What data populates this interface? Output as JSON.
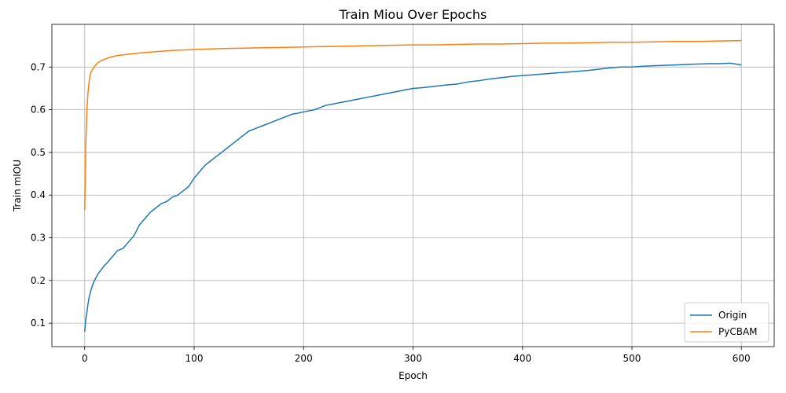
{
  "chart_data": {
    "type": "line",
    "title": "Train Miou Over Epochs",
    "xlabel": "Epoch",
    "ylabel": "Train mIOU",
    "xlim": [
      -30,
      630
    ],
    "ylim": [
      0.045,
      0.8
    ],
    "x_ticks": [
      0,
      100,
      200,
      300,
      400,
      500,
      600
    ],
    "y_ticks": [
      0.1,
      0.2,
      0.3,
      0.4,
      0.5,
      0.6,
      0.7
    ],
    "grid": true,
    "legend_position": "lower-right",
    "series": [
      {
        "name": "Origin",
        "color": "#1f77b4",
        "x": [
          0,
          1,
          2,
          3,
          4,
          5,
          6,
          8,
          10,
          12,
          15,
          18,
          20,
          25,
          30,
          35,
          40,
          45,
          50,
          55,
          60,
          65,
          70,
          75,
          80,
          85,
          90,
          95,
          100,
          105,
          110,
          115,
          120,
          125,
          130,
          135,
          140,
          145,
          150,
          155,
          160,
          165,
          170,
          175,
          180,
          185,
          190,
          195,
          200,
          210,
          220,
          230,
          240,
          250,
          260,
          270,
          280,
          290,
          300,
          310,
          320,
          330,
          340,
          350,
          360,
          370,
          380,
          390,
          400,
          410,
          420,
          430,
          440,
          450,
          460,
          470,
          480,
          490,
          500,
          510,
          520,
          530,
          540,
          550,
          560,
          570,
          580,
          590,
          600
        ],
        "values": [
          0.08,
          0.11,
          0.125,
          0.145,
          0.16,
          0.17,
          0.18,
          0.195,
          0.205,
          0.215,
          0.225,
          0.235,
          0.24,
          0.255,
          0.27,
          0.275,
          0.29,
          0.305,
          0.33,
          0.345,
          0.36,
          0.37,
          0.38,
          0.385,
          0.395,
          0.4,
          0.41,
          0.42,
          0.44,
          0.455,
          0.47,
          0.48,
          0.49,
          0.5,
          0.51,
          0.52,
          0.53,
          0.54,
          0.55,
          0.555,
          0.56,
          0.565,
          0.57,
          0.575,
          0.58,
          0.585,
          0.59,
          0.592,
          0.595,
          0.6,
          0.61,
          0.615,
          0.62,
          0.625,
          0.63,
          0.635,
          0.64,
          0.645,
          0.65,
          0.652,
          0.655,
          0.658,
          0.66,
          0.665,
          0.668,
          0.672,
          0.675,
          0.678,
          0.68,
          0.682,
          0.684,
          0.686,
          0.688,
          0.69,
          0.692,
          0.695,
          0.698,
          0.7,
          0.7,
          0.702,
          0.703,
          0.704,
          0.705,
          0.706,
          0.707,
          0.708,
          0.708,
          0.709,
          0.705
        ]
      },
      {
        "name": "PyCBAM",
        "color": "#ff7f0e",
        "x": [
          0,
          1,
          2,
          3,
          4,
          5,
          6,
          8,
          10,
          12,
          15,
          18,
          20,
          25,
          30,
          40,
          50,
          60,
          70,
          80,
          90,
          100,
          120,
          140,
          160,
          180,
          200,
          220,
          240,
          260,
          280,
          300,
          320,
          340,
          360,
          380,
          400,
          420,
          440,
          460,
          480,
          500,
          520,
          540,
          560,
          580,
          600
        ],
        "values": [
          0.365,
          0.52,
          0.6,
          0.64,
          0.665,
          0.68,
          0.69,
          0.698,
          0.705,
          0.71,
          0.715,
          0.718,
          0.72,
          0.724,
          0.727,
          0.73,
          0.733,
          0.735,
          0.737,
          0.739,
          0.74,
          0.741,
          0.743,
          0.744,
          0.745,
          0.746,
          0.747,
          0.748,
          0.749,
          0.75,
          0.751,
          0.752,
          0.752,
          0.753,
          0.754,
          0.754,
          0.755,
          0.756,
          0.756,
          0.757,
          0.758,
          0.758,
          0.759,
          0.76,
          0.76,
          0.761,
          0.762
        ]
      }
    ]
  }
}
